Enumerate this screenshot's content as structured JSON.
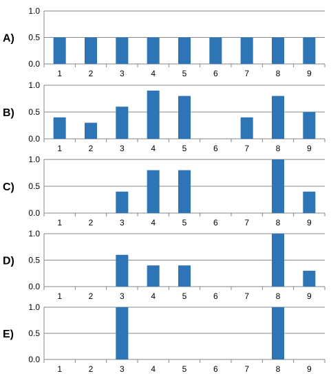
{
  "chart_data": [
    {
      "type": "bar",
      "panel_label": "A)",
      "categories": [
        "1",
        "2",
        "3",
        "4",
        "5",
        "6",
        "7",
        "8",
        "9"
      ],
      "values": [
        0.5,
        0.5,
        0.5,
        0.5,
        0.5,
        0.5,
        0.5,
        0.5,
        0.5
      ],
      "y_ticks": [
        "0.0",
        "0.5",
        "1.0"
      ],
      "ylim": [
        0,
        1
      ],
      "grid": true,
      "bar_color": "#2e75b6"
    },
    {
      "type": "bar",
      "panel_label": "B)",
      "categories": [
        "1",
        "2",
        "3",
        "4",
        "5",
        "6",
        "7",
        "8",
        "9"
      ],
      "values": [
        0.4,
        0.3,
        0.6,
        0.9,
        0.8,
        0,
        0.4,
        0.8,
        0.5
      ],
      "y_ticks": [
        "0.0",
        "0.5",
        "1.0"
      ],
      "ylim": [
        0,
        1
      ],
      "grid": true,
      "bar_color": "#2e75b6"
    },
    {
      "type": "bar",
      "panel_label": "C)",
      "categories": [
        "1",
        "2",
        "3",
        "4",
        "5",
        "6",
        "7",
        "8",
        "9"
      ],
      "values": [
        0,
        0,
        0.4,
        0.8,
        0.8,
        0,
        0,
        1.0,
        0.4
      ],
      "y_ticks": [
        "0.0",
        "0.5",
        "1.0"
      ],
      "ylim": [
        0,
        1
      ],
      "grid": true,
      "bar_color": "#2e75b6"
    },
    {
      "type": "bar",
      "panel_label": "D)",
      "categories": [
        "1",
        "2",
        "3",
        "4",
        "5",
        "6",
        "7",
        "8",
        "9"
      ],
      "values": [
        0,
        0,
        0.6,
        0.4,
        0.4,
        0,
        0,
        1.0,
        0.3
      ],
      "y_ticks": [
        "0.0",
        "0.5",
        "1.0"
      ],
      "ylim": [
        0,
        1
      ],
      "grid": true,
      "bar_color": "#2e75b6"
    },
    {
      "type": "bar",
      "panel_label": "E)",
      "categories": [
        "1",
        "2",
        "3",
        "4",
        "5",
        "6",
        "7",
        "8",
        "9"
      ],
      "values": [
        0,
        0,
        1.0,
        0,
        0,
        0,
        0,
        1.0,
        0
      ],
      "y_ticks": [
        "0.0",
        "0.5",
        "1.0"
      ],
      "ylim": [
        0,
        1
      ],
      "grid": true,
      "bar_color": "#2e75b6"
    }
  ]
}
